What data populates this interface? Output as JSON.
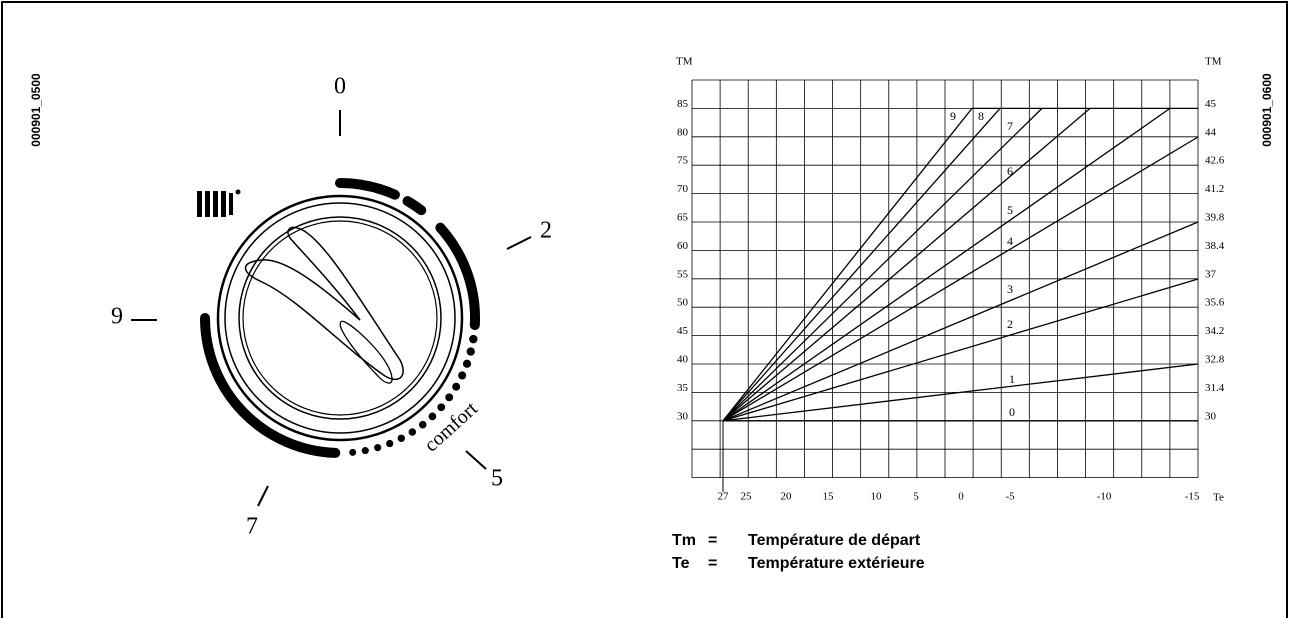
{
  "codes": {
    "left": "000901_0500",
    "right": "000901_0600"
  },
  "dial": {
    "labels": [
      "0",
      "2",
      "5",
      "7",
      "9"
    ],
    "comfort": "comfort"
  },
  "curve_chart": {
    "left_axis_title": "TM",
    "right_axis_title": "TM",
    "left_ticks": [
      "85",
      "80",
      "75",
      "70",
      "65",
      "60",
      "55",
      "50",
      "45",
      "40",
      "35",
      "30"
    ],
    "right_ticks": [
      "45",
      "44",
      "42.6",
      "41.2",
      "39.8",
      "38.4",
      "37",
      "35.6",
      "34.2",
      "32.8",
      "31.4",
      "30"
    ],
    "x_ticks": [
      "27",
      "25",
      "20",
      "15",
      "10",
      "5",
      "0",
      "-5",
      "-10",
      "-15"
    ],
    "x_axis_title": "Te",
    "curve_labels": [
      "0",
      "1",
      "2",
      "3",
      "4",
      "5",
      "6",
      "7",
      "8",
      "9"
    ]
  },
  "legend": [
    {
      "symbol": "Tm",
      "eq": "=",
      "text": "Température de départ"
    },
    {
      "symbol": "Te",
      "eq": "=",
      "text": "Température extérieure"
    }
  ]
}
